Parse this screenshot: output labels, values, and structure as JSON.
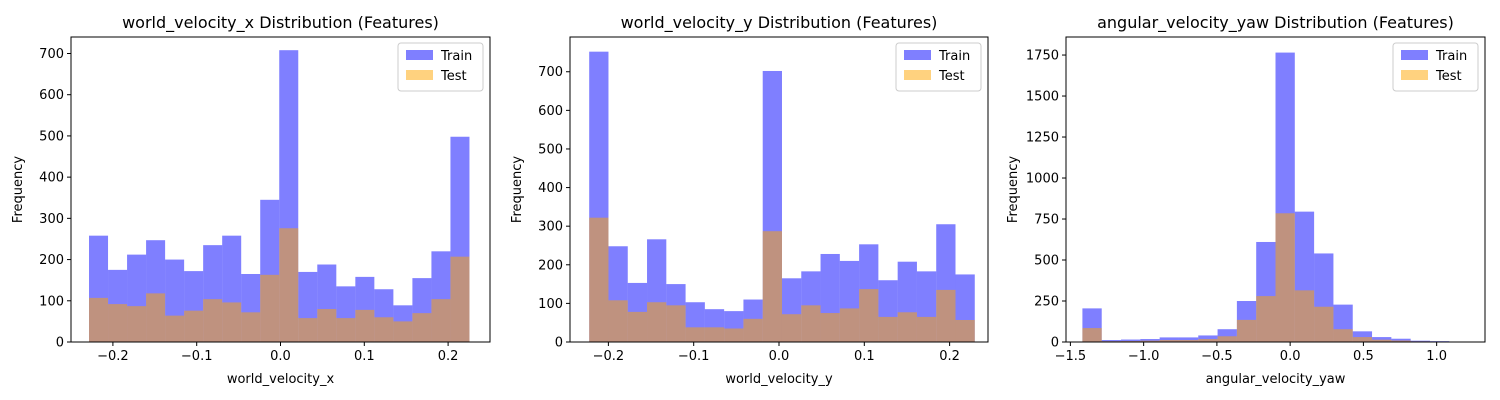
{
  "chart_data": [
    {
      "type": "bar",
      "title": "world_velocity_x Distribution (Features)",
      "xlabel": "world_velocity_x",
      "ylabel": "Frequency",
      "xlim": [
        -0.25,
        0.25
      ],
      "ylim": [
        0,
        740
      ],
      "xticks": [
        -0.2,
        -0.1,
        0.0,
        0.1,
        0.2
      ],
      "xtick_labels": [
        "−0.2",
        "−0.1",
        "0.0",
        "0.1",
        "0.2"
      ],
      "yticks": [
        0,
        100,
        200,
        300,
        400,
        500,
        600,
        700
      ],
      "ytick_labels": [
        "0",
        "100",
        "200",
        "300",
        "400",
        "500",
        "600",
        "700"
      ],
      "bin_start": -0.2285,
      "bin_end": 0.2255,
      "legend": {
        "position": "upper right"
      },
      "series": [
        {
          "name": "Train",
          "color": "#0000ff",
          "alpha": 0.5,
          "values": [
            258,
            175,
            212,
            247,
            200,
            172,
            235,
            258,
            165,
            345,
            708,
            170,
            188,
            135,
            158,
            128,
            89,
            155,
            220,
            498
          ]
        },
        {
          "name": "Test",
          "color": "#ffa500",
          "alpha": 0.5,
          "values": [
            107,
            92,
            87,
            118,
            64,
            76,
            104,
            96,
            72,
            163,
            276,
            58,
            80,
            58,
            78,
            60,
            50,
            70,
            104,
            207
          ]
        }
      ]
    },
    {
      "type": "bar",
      "title": "world_velocity_y Distribution (Features)",
      "xlabel": "world_velocity_y",
      "ylabel": "Frequency",
      "xlim": [
        -0.245,
        0.245
      ],
      "ylim": [
        0,
        790
      ],
      "xticks": [
        -0.2,
        -0.1,
        0.0,
        0.1,
        0.2
      ],
      "xtick_labels": [
        "−0.2",
        "−0.1",
        "0.0",
        "0.1",
        "0.2"
      ],
      "yticks": [
        0,
        100,
        200,
        300,
        400,
        500,
        600,
        700
      ],
      "ytick_labels": [
        "0",
        "100",
        "200",
        "300",
        "400",
        "500",
        "600",
        "700"
      ],
      "bin_start": -0.2225,
      "bin_end": 0.2295,
      "legend": {
        "position": "upper right"
      },
      "series": [
        {
          "name": "Train",
          "color": "#0000ff",
          "alpha": 0.5,
          "values": [
            752,
            248,
            153,
            266,
            150,
            103,
            85,
            80,
            110,
            702,
            165,
            183,
            228,
            210,
            253,
            160,
            208,
            183,
            305,
            175
          ]
        },
        {
          "name": "Test",
          "color": "#ffa500",
          "alpha": 0.5,
          "values": [
            322,
            108,
            78,
            103,
            95,
            38,
            38,
            35,
            60,
            287,
            72,
            95,
            75,
            87,
            137,
            65,
            77,
            65,
            135,
            57
          ]
        }
      ]
    },
    {
      "type": "bar",
      "title": "angular_velocity_yaw Distribution (Features)",
      "xlabel": "angular_velocity_yaw",
      "ylabel": "Frequency",
      "xlim": [
        -1.53,
        1.33
      ],
      "ylim": [
        0,
        1860
      ],
      "xticks": [
        -1.5,
        -1.0,
        -0.5,
        0.0,
        0.5,
        1.0
      ],
      "xtick_labels": [
        "−1.5",
        "−1.0",
        "−0.5",
        "0.0",
        "0.5",
        "1.0"
      ],
      "yticks": [
        0,
        250,
        500,
        750,
        1000,
        1250,
        1500,
        1750
      ],
      "ytick_labels": [
        "0",
        "250",
        "500",
        "750",
        "1000",
        "1250",
        "1500",
        "1750"
      ],
      "bin_start": -1.418,
      "bin_end": 1.218,
      "legend": {
        "position": "upper right"
      },
      "series": [
        {
          "name": "Train",
          "color": "#0000ff",
          "alpha": 0.5,
          "values": [
            205,
            12,
            15,
            18,
            28,
            28,
            40,
            78,
            250,
            610,
            1765,
            795,
            540,
            228,
            65,
            30,
            20,
            8,
            5,
            3
          ]
        },
        {
          "name": "Test",
          "color": "#ffa500",
          "alpha": 0.5,
          "values": [
            85,
            5,
            6,
            8,
            12,
            12,
            18,
            35,
            135,
            280,
            785,
            315,
            215,
            78,
            30,
            14,
            9,
            4,
            2,
            1
          ]
        }
      ]
    }
  ]
}
